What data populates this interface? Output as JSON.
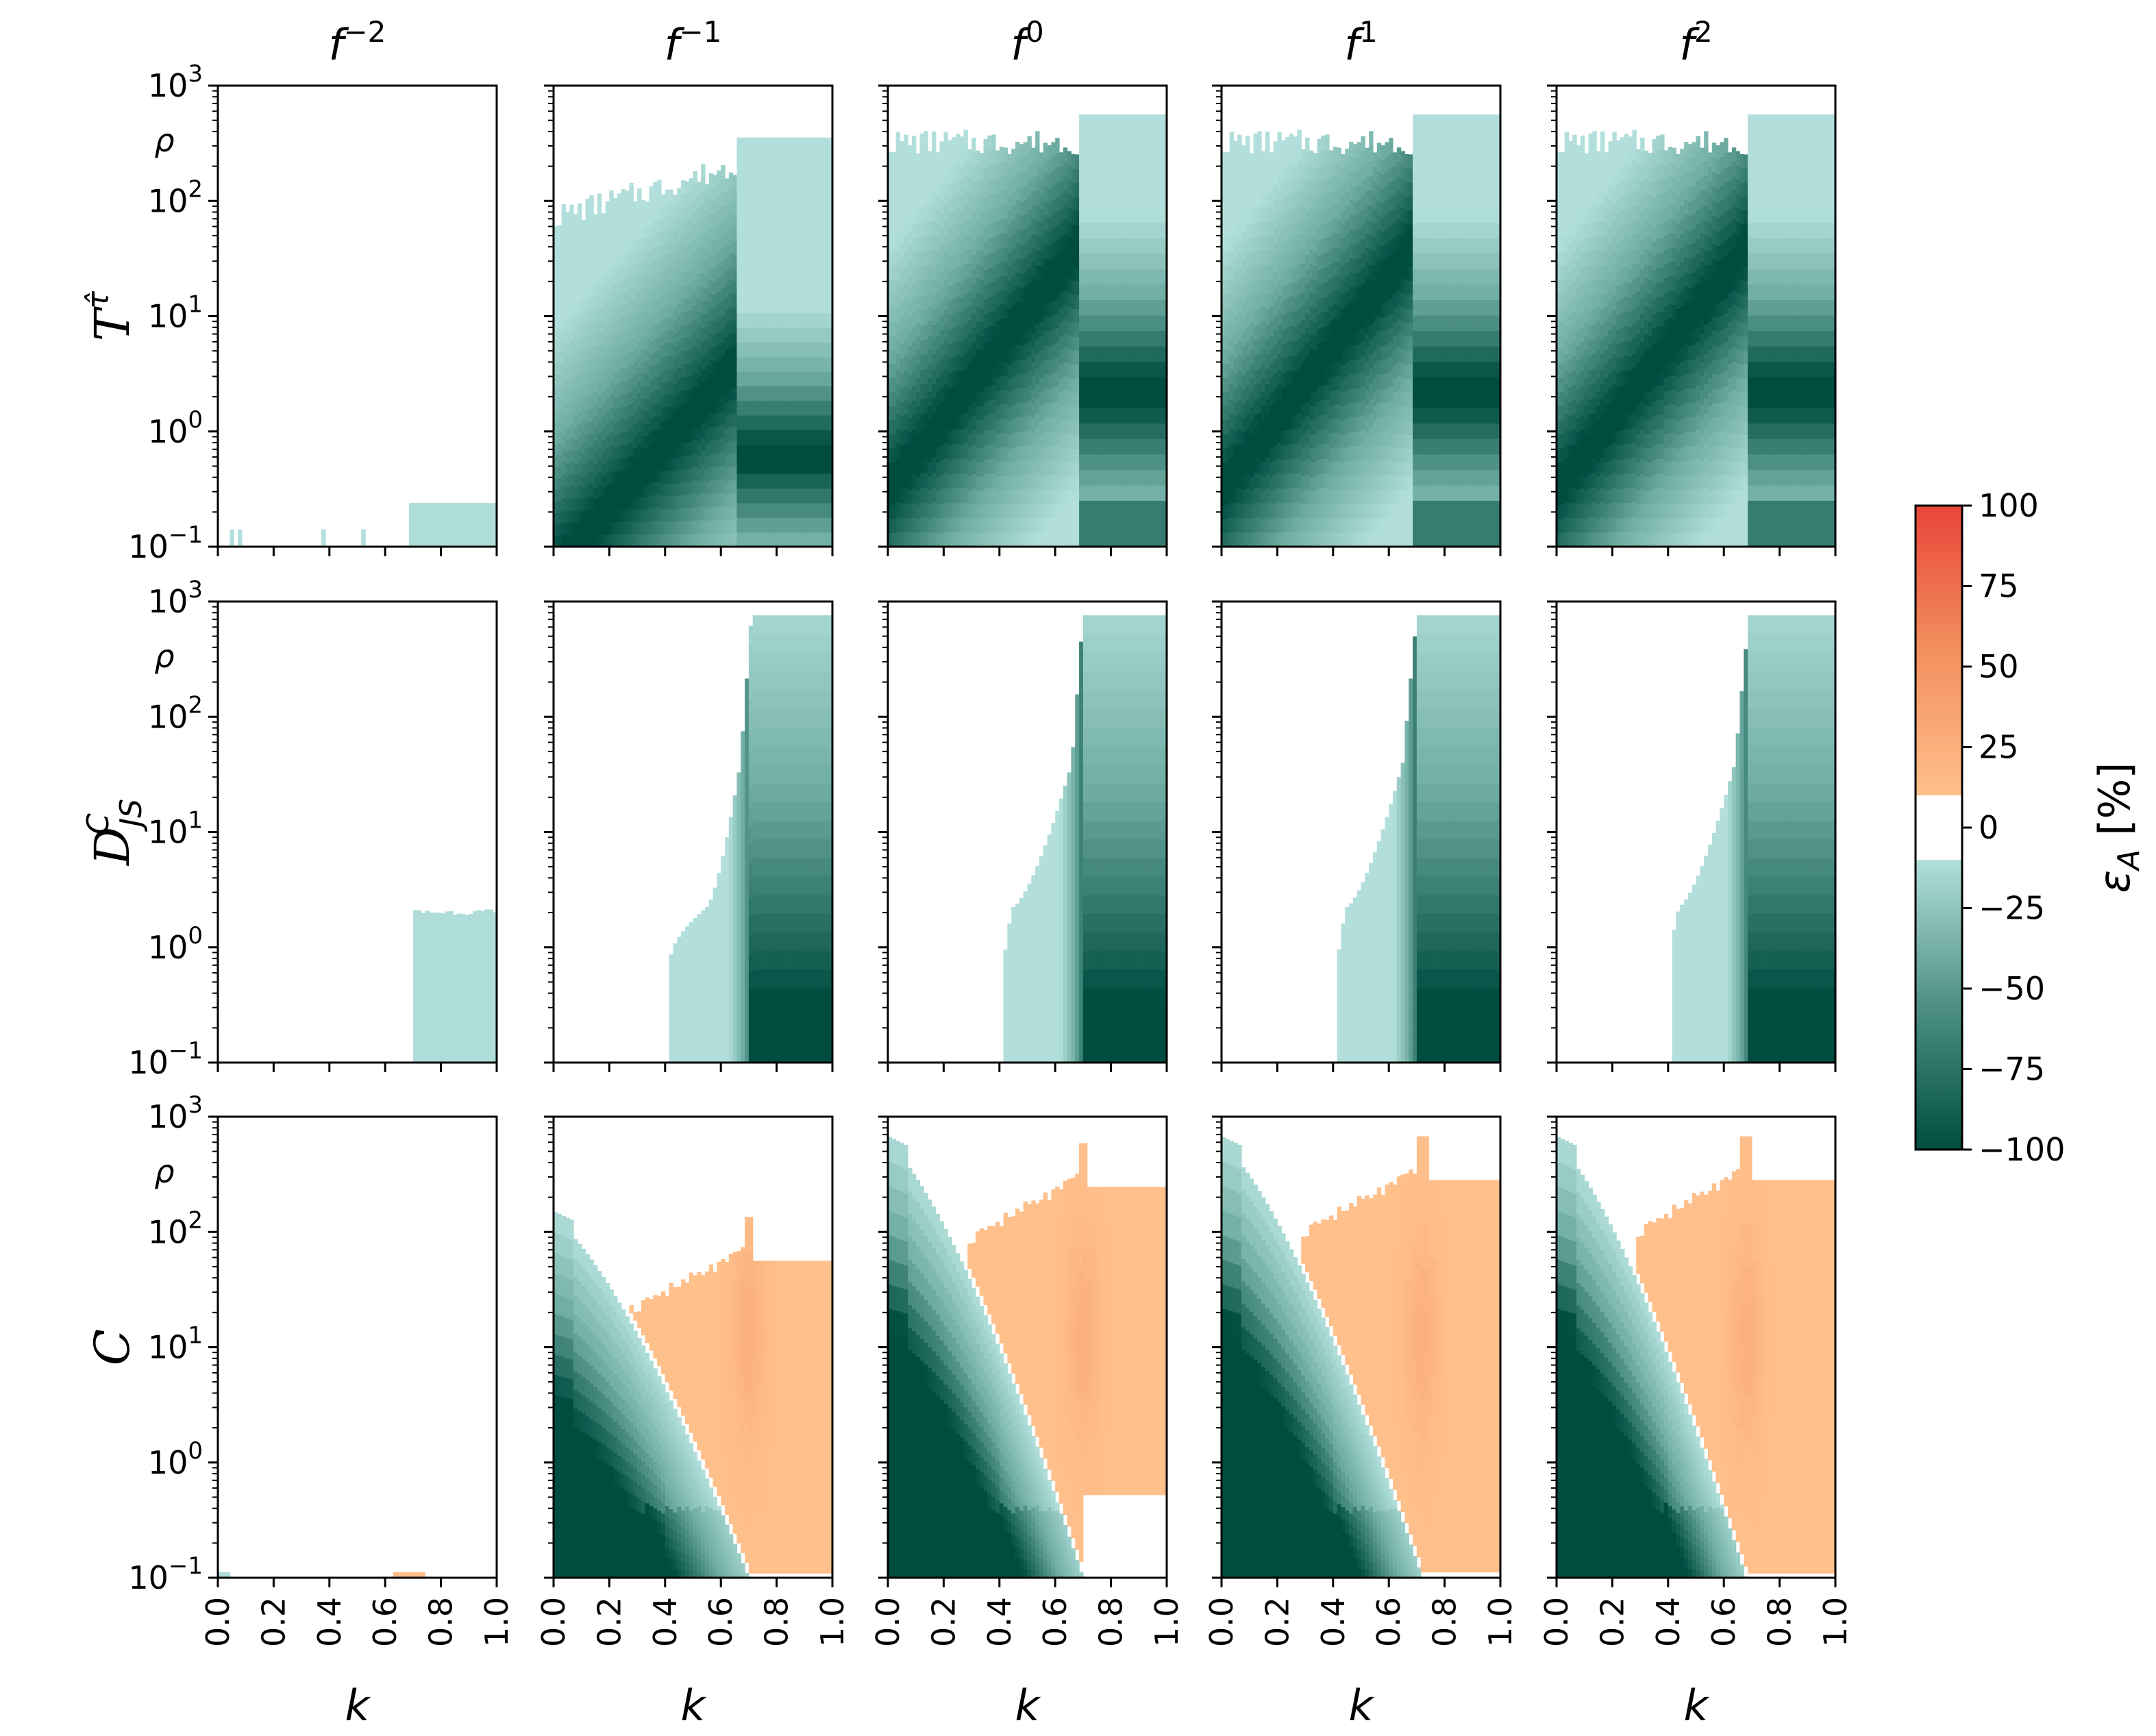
{
  "chart_data": {
    "type": "heatmap",
    "layout": "grid 3 rows x 5 columns",
    "column_titles": [
      "f",
      "f",
      "f",
      "f",
      "f"
    ],
    "column_exponents": [
      "−2",
      "−1",
      "0",
      "1",
      "2"
    ],
    "row_labels": [
      {
        "main": "T",
        "sup": "τ̂",
        "sub": ""
      },
      {
        "main": "D",
        "sup": "C",
        "sub": "JS"
      },
      {
        "main": "C",
        "sup": "",
        "sub": ""
      }
    ],
    "xlabel": "k",
    "ylabel": "ρ",
    "x_range": [
      0.0,
      1.0
    ],
    "x_ticks": [
      "0.0",
      "0.2",
      "0.4",
      "0.6",
      "0.8",
      "1.0"
    ],
    "y_scale": "log",
    "y_range": [
      0.1,
      1000
    ],
    "y_ticks": [
      {
        "base": "10",
        "exp": "−1"
      },
      {
        "base": "10",
        "exp": "0"
      },
      {
        "base": "10",
        "exp": "1"
      },
      {
        "base": "10",
        "exp": "2"
      },
      {
        "base": "10",
        "exp": "3"
      }
    ],
    "colorbar": {
      "label": "ε",
      "label_sub": "A",
      "label_unit": "[%]",
      "range": [
        -100,
        100
      ],
      "ticks": [
        "100",
        "75",
        "50",
        "25",
        "0",
        "−25",
        "−50",
        "−75",
        "−100"
      ],
      "colors": {
        "neg_strong": "#004d40",
        "neg_mid": "#6fada3",
        "neg_weak": "#b2dfdb",
        "zero": "#ffffff",
        "pos_weak": "#ffc08c",
        "pos_mid": "#f69a6a",
        "pos_strong": "#e8453a"
      }
    },
    "panels": [
      {
        "row": 0,
        "col": 0,
        "mode": "T0"
      },
      {
        "row": 0,
        "col": 1,
        "mode": "T1"
      },
      {
        "row": 0,
        "col": 2,
        "mode": "T2"
      },
      {
        "row": 0,
        "col": 3,
        "mode": "T3"
      },
      {
        "row": 0,
        "col": 4,
        "mode": "T4"
      },
      {
        "row": 1,
        "col": 0,
        "mode": "D0",
        "start_k": 0.7,
        "top_log": 0.28
      },
      {
        "row": 1,
        "col": 1,
        "mode": "D",
        "start_k": 0.42,
        "bend_k": 0.55,
        "steep_k": 0.67,
        "break_k": 0.71
      },
      {
        "row": 1,
        "col": 2,
        "mode": "D",
        "start_k": 0.42,
        "bend_k": 0.45,
        "steep_k": 0.66,
        "break_k": 0.7
      },
      {
        "row": 1,
        "col": 3,
        "mode": "D",
        "start_k": 0.42,
        "bend_k": 0.45,
        "steep_k": 0.65,
        "break_k": 0.7
      },
      {
        "row": 1,
        "col": 4,
        "mode": "D",
        "start_k": 0.41,
        "bend_k": 0.44,
        "steep_k": 0.64,
        "break_k": 0.69
      },
      {
        "row": 2,
        "col": 0,
        "mode": "C0"
      },
      {
        "row": 2,
        "col": 1,
        "mode": "C",
        "neg_top": 2.1,
        "bnd_end": 0.7,
        "orange_start": 0.24,
        "orange_top": 1.78,
        "orange_bottom": -1.0
      },
      {
        "row": 2,
        "col": 2,
        "mode": "C",
        "neg_top": 2.75,
        "bnd_end": 0.7,
        "orange_start": 0.28,
        "orange_top": 2.42,
        "orange_bottom": -0.28
      },
      {
        "row": 2,
        "col": 3,
        "mode": "C",
        "neg_top": 2.75,
        "bnd_end": 0.72,
        "orange_start": 0.28,
        "orange_top": 2.48,
        "orange_bottom": -0.95
      },
      {
        "row": 2,
        "col": 4,
        "mode": "C",
        "neg_top": 2.75,
        "bnd_end": 0.68,
        "orange_start": 0.28,
        "orange_top": 2.48,
        "orange_bottom": -1.0
      }
    ]
  }
}
